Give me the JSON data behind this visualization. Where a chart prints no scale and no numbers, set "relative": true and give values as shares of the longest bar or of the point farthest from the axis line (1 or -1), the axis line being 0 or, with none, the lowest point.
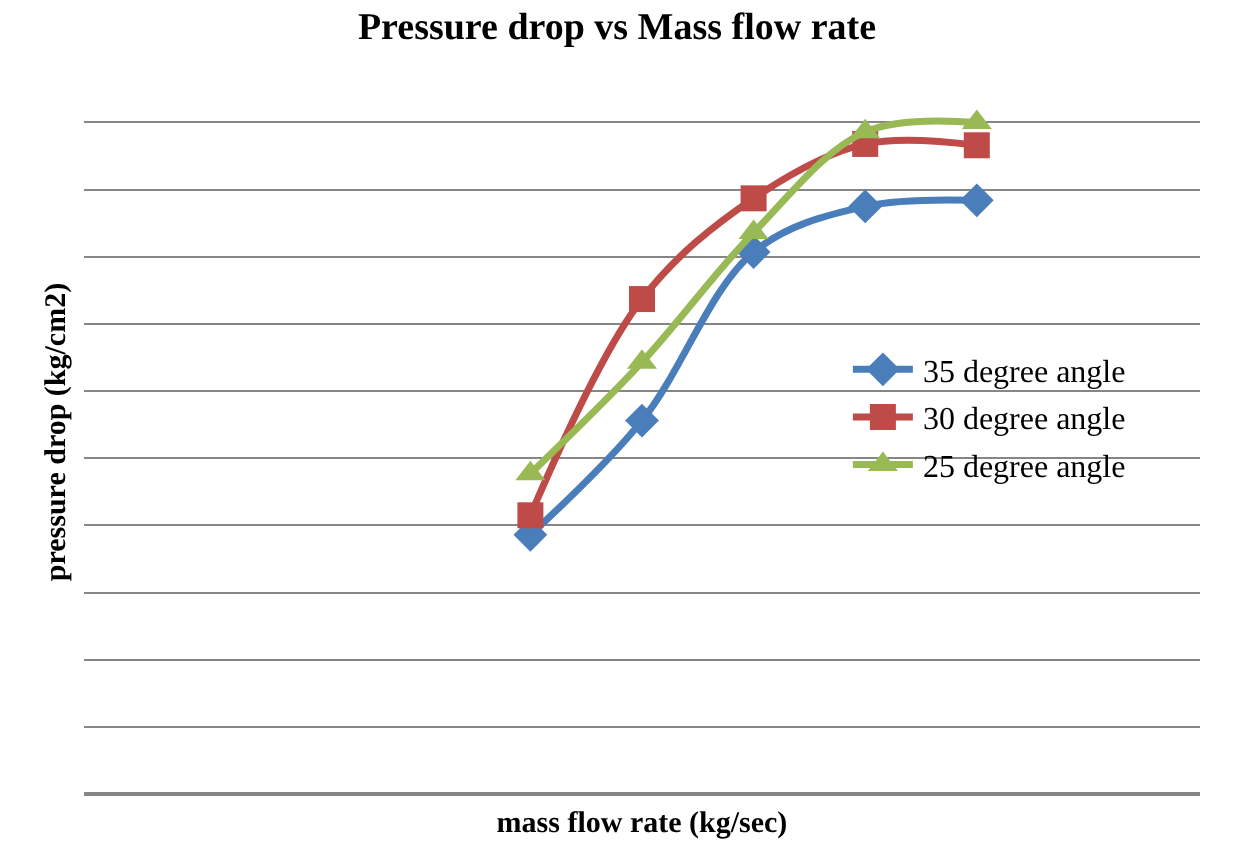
{
  "chart_data": {
    "type": "line",
    "title": "Pressure drop vs Mass flow rate",
    "xlabel": "mass flow rate (kg/sec)",
    "ylabel": "pressure drop (kg/cm2)",
    "relative": true,
    "categories": [
      null,
      null,
      null,
      null,
      null,
      null,
      null,
      null,
      null,
      null,
      null
    ],
    "series": [
      {
        "name": "35 degree angle",
        "color": "#4a7ebb",
        "marker": "diamond",
        "values": [
          null,
          null,
          null,
          null,
          0.386,
          0.556,
          0.807,
          0.875,
          0.884,
          null,
          null
        ]
      },
      {
        "name": "30 degree angle",
        "color": "#be4b48",
        "marker": "square",
        "values": [
          null,
          null,
          null,
          null,
          0.415,
          0.737,
          0.887,
          0.968,
          0.966,
          null,
          null
        ]
      },
      {
        "name": "25 degree angle",
        "color": "#98b954",
        "marker": "triangle",
        "values": [
          null,
          null,
          null,
          null,
          0.477,
          0.643,
          0.836,
          0.986,
          1,
          null,
          null
        ]
      }
    ],
    "grid": "y",
    "legend": "right",
    "line_style": "solid"
  }
}
